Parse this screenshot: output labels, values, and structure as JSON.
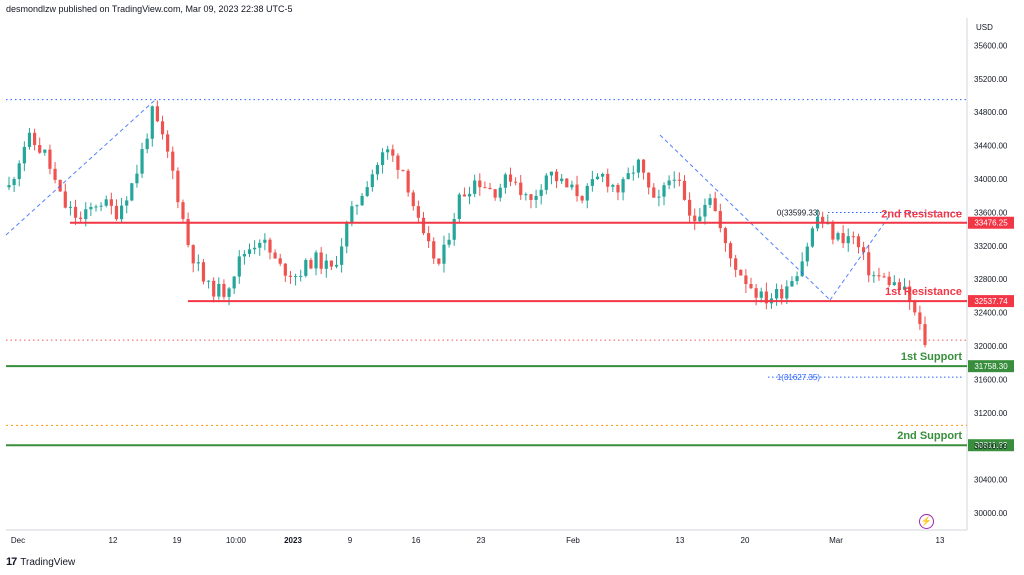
{
  "header": {
    "text": "desmondlzw published on TradingView.com, Mar 09, 2023 22:38 UTC-5"
  },
  "brand": {
    "logo": "17",
    "name": "TradingView"
  },
  "icons": {
    "alert": "lightning-icon"
  },
  "colors": {
    "up": "#26a69a",
    "down": "#ef5350",
    "resistance": "#f23645",
    "support": "#388e3c",
    "fib": "#2962ff",
    "bluedot": "#2962ff",
    "orangedot": "#ff9800"
  },
  "chart_data": {
    "type": "candlestick",
    "currency": "USD",
    "ylim": [
      29800,
      36000
    ],
    "y_ticks": [
      30000,
      30400,
      30800,
      31200,
      31600,
      32000,
      32400,
      32800,
      33200,
      33600,
      34000,
      34400,
      34800,
      35200,
      35600
    ],
    "x_ticks": [
      "Dec",
      "12",
      "19",
      "10:00",
      "2023",
      "9",
      "16",
      "23",
      "Feb",
      "13",
      "20",
      "Mar",
      "13"
    ],
    "price_labels": [
      {
        "value": "33476.25",
        "color": "#f23645"
      },
      {
        "value": "32537.74",
        "color": "#f23645"
      },
      {
        "value": "31758.30",
        "color": "#388e3c"
      },
      {
        "value": "30811.83",
        "color": "#388e3c"
      }
    ],
    "levels": [
      {
        "label": "2nd Resistance",
        "value": 33476.25,
        "kind": "resistance"
      },
      {
        "label": "1st Resistance",
        "value": 32537.74,
        "kind": "resistance"
      },
      {
        "label": "1st Support",
        "value": 31758.3,
        "kind": "support"
      },
      {
        "label": "2nd Support",
        "value": 30811.83,
        "kind": "support"
      }
    ],
    "fib_labels": [
      {
        "label": "0(33599.33)",
        "value": 33599.33
      },
      {
        "label": "1(31627.35)",
        "value": 31627.35
      }
    ],
    "dotted_levels": [
      {
        "value": 34950,
        "color": "#2962ff"
      },
      {
        "value": 31050,
        "color": "#ff9800"
      },
      {
        "value": 32070,
        "color": "#ef5350"
      }
    ],
    "close_path": [
      33900,
      34500,
      34300,
      33700,
      33500,
      33750,
      33600,
      34000,
      34800,
      34200,
      33200,
      32700,
      32650,
      33100,
      33300,
      32950,
      32850,
      33050,
      32900,
      33550,
      34000,
      34350,
      34100,
      33300,
      32950,
      33750,
      34000,
      33850,
      34050,
      33700,
      34100,
      33900,
      33800,
      34050,
      33850,
      34200,
      33650,
      34100,
      33450,
      33850,
      33100,
      32800,
      32550,
      32650,
      32950,
      33550,
      33300,
      33300,
      32850,
      32780,
      32620,
      32050
    ]
  }
}
